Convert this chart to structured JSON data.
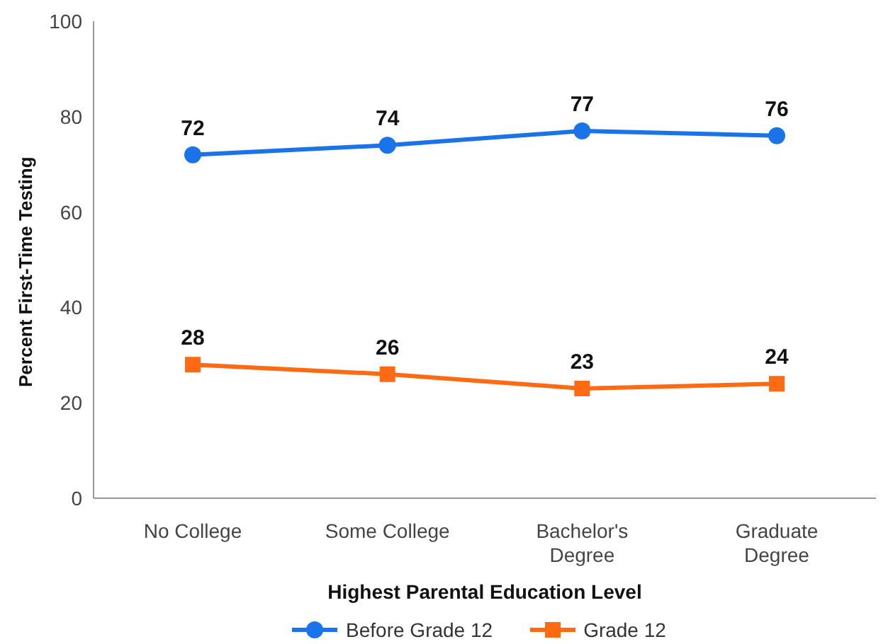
{
  "chart_data": {
    "type": "line",
    "xlabel": "Highest Parental Education Level",
    "ylabel": "Percent First-Time Testing",
    "categories": [
      "No College",
      "Some College",
      "Bachelor's Degree",
      "Graduate Degree"
    ],
    "series": [
      {
        "name": "Before Grade 12",
        "color": "#1a73e8",
        "values": [
          72,
          74,
          77,
          76
        ],
        "marker": "circle"
      },
      {
        "name": "Grade 12",
        "color": "#ff6a13",
        "values": [
          28,
          26,
          23,
          24
        ],
        "marker": "square"
      }
    ],
    "ylim": [
      0,
      100
    ],
    "yticks": [
      0,
      20,
      40,
      60,
      80,
      100
    ],
    "grid": false,
    "legend": "bottom",
    "data_labels": true,
    "line_style": "solid"
  }
}
